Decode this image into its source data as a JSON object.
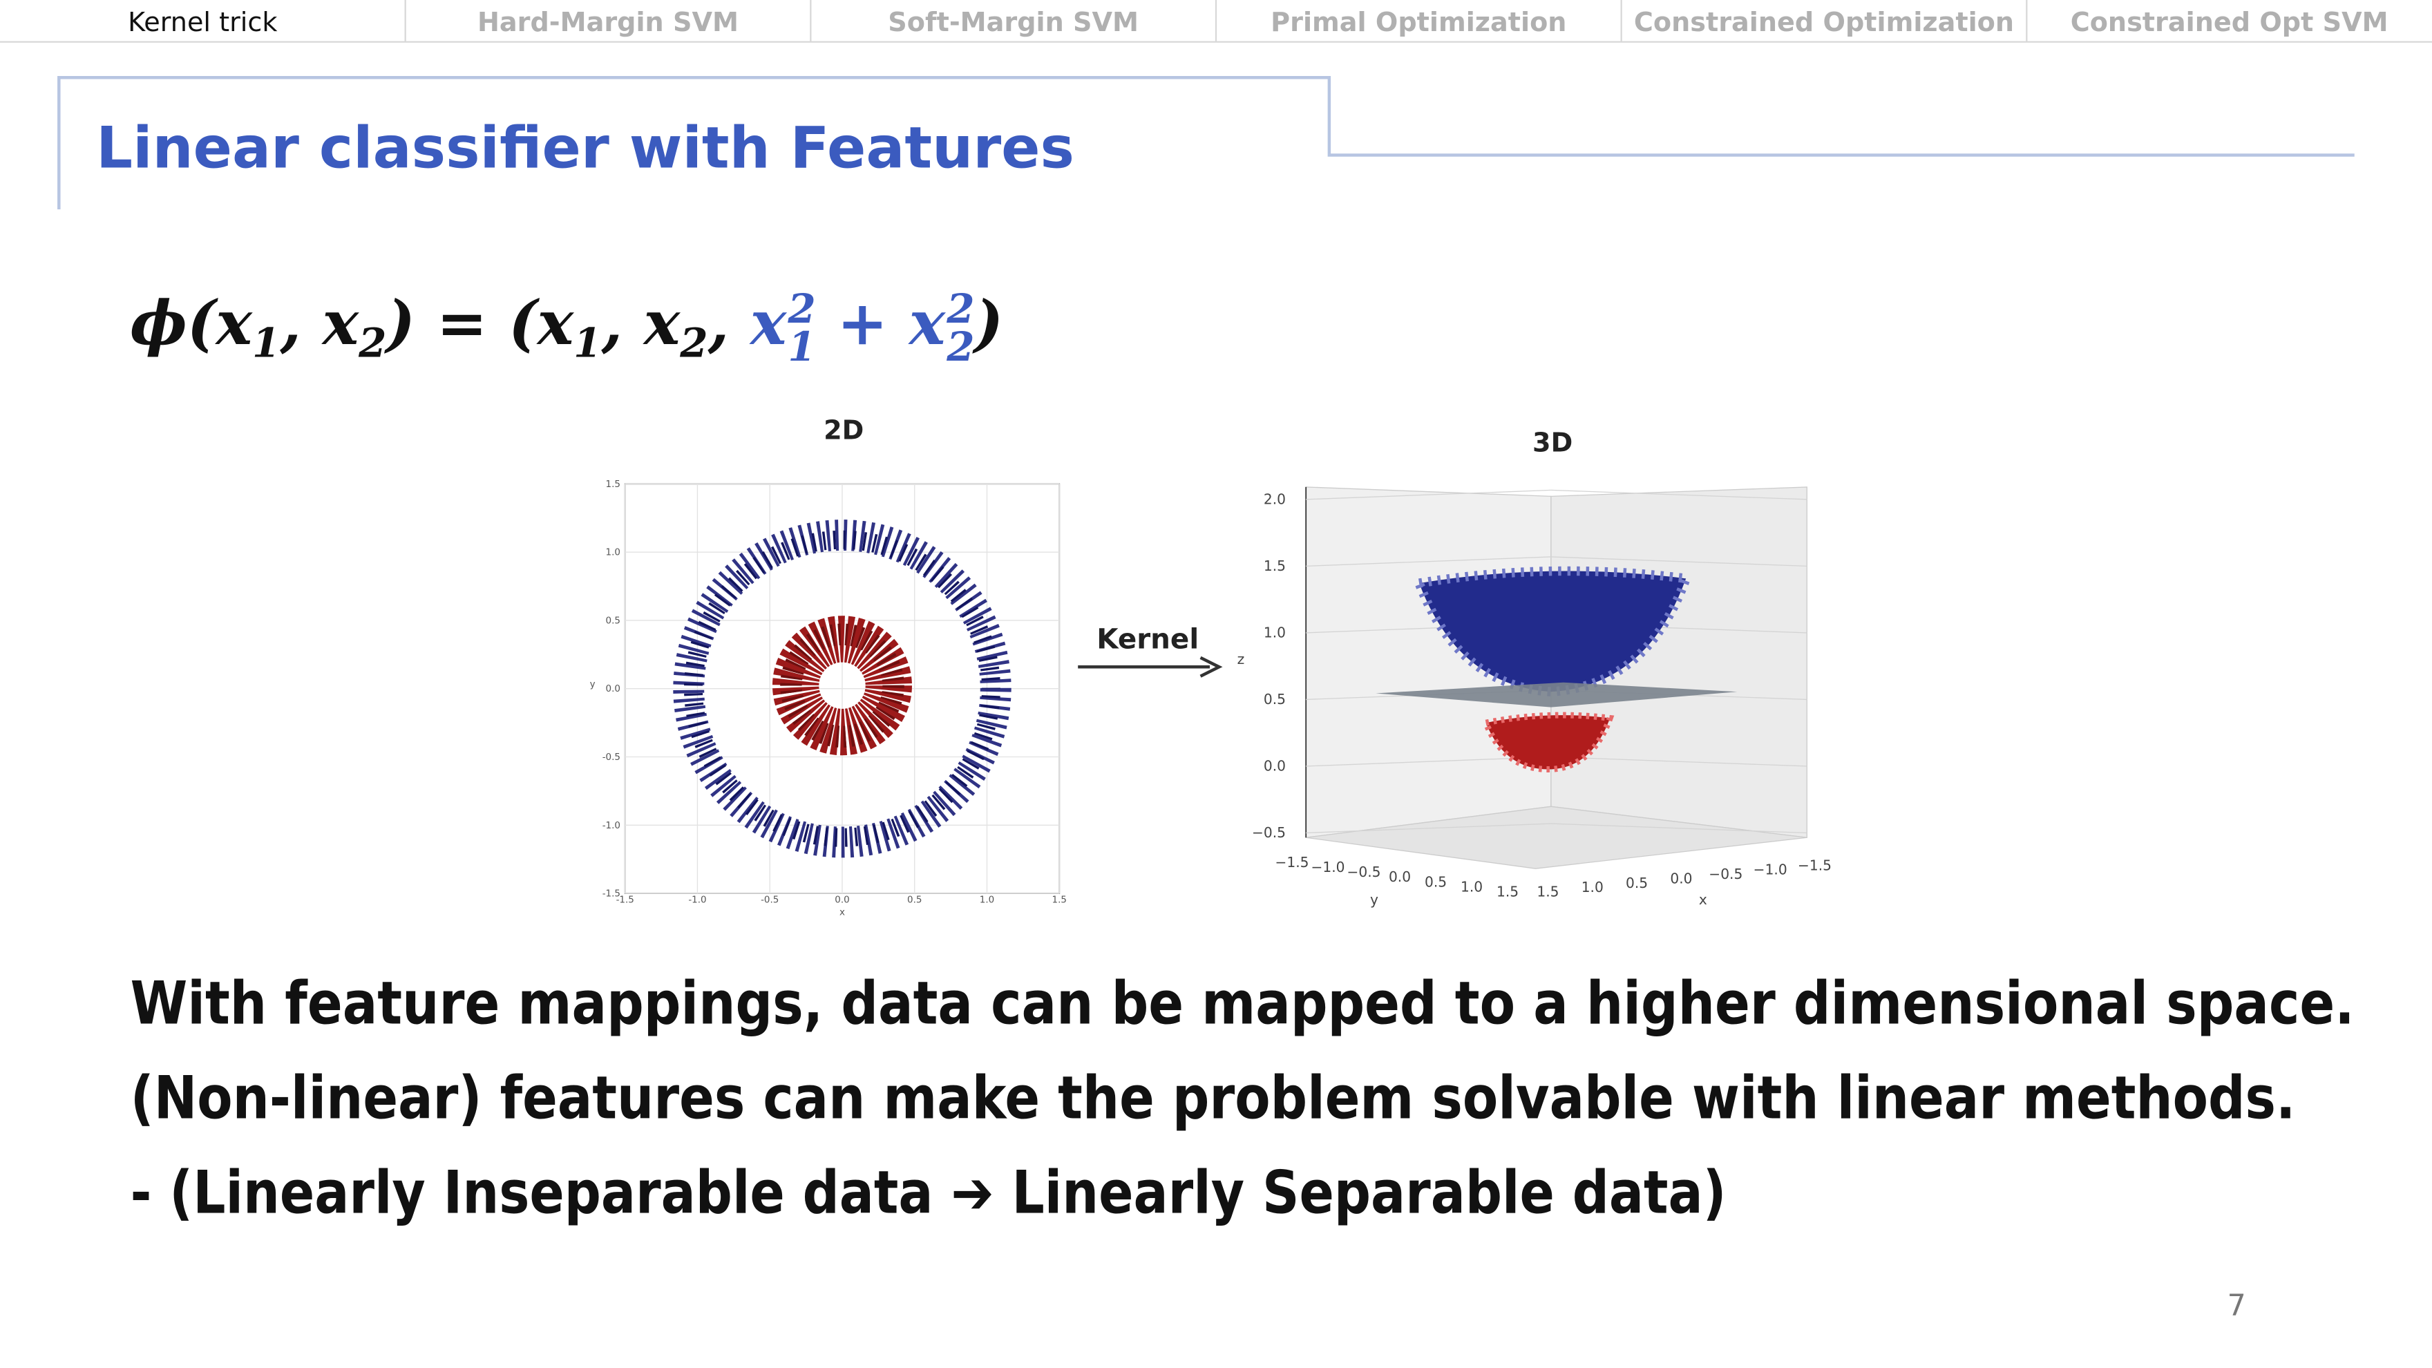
{
  "tabs": [
    "Kernel trick",
    "Hard-Margin SVM",
    "Soft-Margin SVM",
    "Primal Optimization",
    "Constrained Optimization",
    "Constrained Opt SVM"
  ],
  "title": "Linear classifier with Features",
  "formula": {
    "parts": [
      "ϕ(x",
      "1",
      ", x",
      "2",
      ") = (x",
      "1",
      ", x",
      "2",
      ", ",
      "x",
      "2",
      "1",
      " + x",
      "2",
      "2",
      ")"
    ]
  },
  "figure": {
    "title_2d": "2D",
    "plot_2d": {
      "yticks": [
        "1.5",
        "1.0",
        "0.5",
        "0.0",
        "-0.5",
        "-1.0",
        "-1.5"
      ],
      "xticks": [
        "-1.5",
        "-1.0",
        "-0.5",
        "0.0",
        "0.5",
        "1.0",
        "1.5"
      ],
      "xlabel": "x",
      "ylabel": "y"
    },
    "arrow_label": "Kernel",
    "title_3d": "3D",
    "plot_3d": {
      "zticks": [
        "2.0",
        "1.5",
        "1.0",
        "0.5",
        "0.0",
        "−0.5"
      ],
      "zlabel": "z",
      "yticks": [
        "−1.5",
        "−1.0",
        "−0.5",
        "0.0",
        "0.5",
        "1.0",
        "1.5"
      ],
      "ylabel": "y",
      "xticks": [
        "1.5",
        "1.0",
        "0.5",
        "0.0",
        "−0.5",
        "−1.0",
        "−1.5"
      ],
      "xlabel": "x"
    }
  },
  "body": [
    "With feature mappings, data can be mapped to a higher dimensional space.",
    "(Non-linear) features can make the problem solvable with linear methods.",
    "- (Linearly Inseparable data ➔ Linearly Separable data)"
  ],
  "page_number": "7"
}
